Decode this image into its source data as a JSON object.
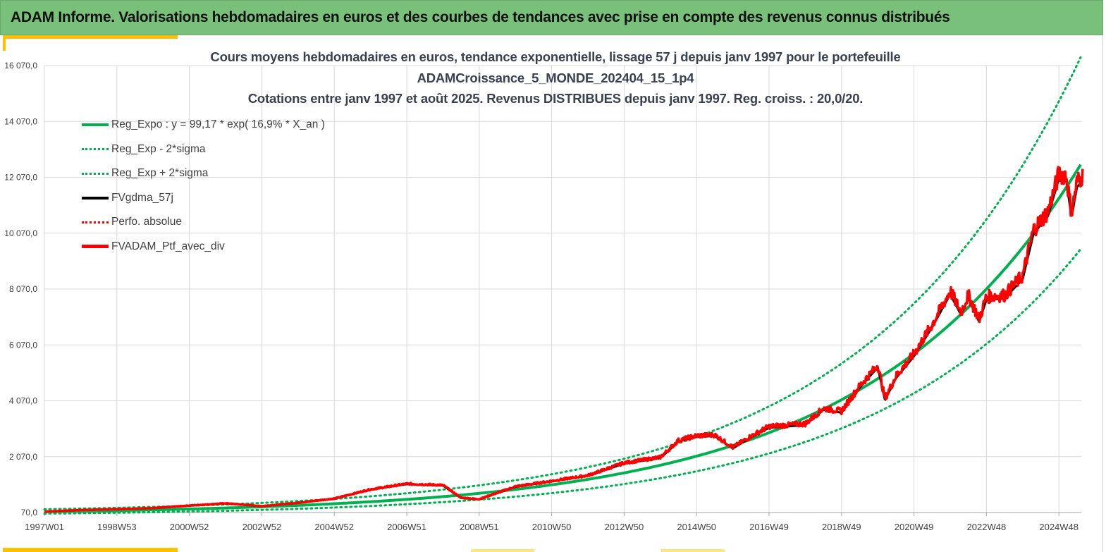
{
  "header": {
    "title": "ADAM Informe. Valorisations hebdomadaires en euros et des courbes de tendances avec prise en compte des revenus connus distribués"
  },
  "chart_data": {
    "type": "line",
    "title_lines": [
      "Cours moyens hebdomadaires  en euros, tendance exponentielle, lissage 57 j depuis janv 1997 pour le portefeuille",
      "ADAMCroissance_5_MONDE_202404_15_1p4",
      "Cotations  entre janv 1997 et août 2025. Revenus DISTRIBUES depuis janv 1997. Reg. croiss. : 20,0/20."
    ],
    "xlabel": "",
    "ylabel": "",
    "x_ticks": [
      "1997W01",
      "1998W53",
      "2000W52",
      "2002W52",
      "2004W52",
      "2006W51",
      "2008W51",
      "2010W50",
      "2012W50",
      "2014W50",
      "2016W49",
      "2018W49",
      "2020W49",
      "2022W48",
      "2024W48"
    ],
    "x_range": [
      "1997W01",
      "2025W35"
    ],
    "y_ticks": [
      "70,0",
      "2 070,0",
      "4 070,0",
      "6 070,0",
      "8 070,0",
      "10 070,0",
      "12 070,0",
      "14 070,0",
      "16 070,0"
    ],
    "ylim": [
      70,
      16070
    ],
    "grid": true,
    "legend_position": "top-left",
    "regression": {
      "a": 99.17,
      "rate": 0.169
    },
    "series": [
      {
        "name": "Reg_Expo : y = 99,17 * exp( 16,9% *  X_an )",
        "color": "#00b050",
        "style": "solid"
      },
      {
        "name": "Reg_Exp - 2*sigma",
        "color": "#00b050",
        "style": "dotted"
      },
      {
        "name": "Reg_Exp + 2*sigma",
        "color": "#00b050",
        "style": "dotted"
      },
      {
        "name": "FVgdma_57j",
        "color": "#000000",
        "style": "solid"
      },
      {
        "name": "Perfo. absolue",
        "color": "#ff0000",
        "style": "dotted"
      },
      {
        "name": "FVADAM_Ptf_avec_div",
        "color": "#ff0000",
        "style": "solid",
        "points": [
          [
            1997.0,
            100
          ],
          [
            1998.0,
            160
          ],
          [
            1999.0,
            190
          ],
          [
            2000.0,
            230
          ],
          [
            2001.0,
            320
          ],
          [
            2002.0,
            400
          ],
          [
            2003.0,
            300
          ],
          [
            2004.0,
            420
          ],
          [
            2005.0,
            570
          ],
          [
            2006.0,
            900
          ],
          [
            2007.0,
            1100
          ],
          [
            2008.0,
            1050
          ],
          [
            2008.5,
            600
          ],
          [
            2009.0,
            550
          ],
          [
            2010.0,
            1000
          ],
          [
            2011.0,
            1200
          ],
          [
            2012.0,
            1400
          ],
          [
            2013.0,
            1850
          ],
          [
            2014.0,
            2050
          ],
          [
            2014.5,
            2650
          ],
          [
            2015.0,
            2820
          ],
          [
            2015.5,
            2850
          ],
          [
            2016.0,
            2400
          ],
          [
            2016.5,
            2800
          ],
          [
            2017.0,
            3150
          ],
          [
            2018.0,
            3250
          ],
          [
            2018.5,
            3800
          ],
          [
            2019.0,
            3700
          ],
          [
            2019.5,
            4600
          ],
          [
            2020.0,
            5350
          ],
          [
            2020.2,
            4150
          ],
          [
            2020.5,
            4950
          ],
          [
            2021.0,
            5750
          ],
          [
            2021.5,
            6800
          ],
          [
            2022.0,
            8000
          ],
          [
            2022.3,
            7250
          ],
          [
            2022.5,
            7850
          ],
          [
            2022.8,
            7000
          ],
          [
            2023.0,
            7800
          ],
          [
            2023.5,
            7850
          ],
          [
            2024.0,
            8550
          ],
          [
            2024.3,
            10200
          ],
          [
            2024.7,
            10850
          ],
          [
            2025.0,
            12200
          ],
          [
            2025.2,
            12150
          ],
          [
            2025.35,
            10800
          ],
          [
            2025.5,
            11900
          ],
          [
            2025.67,
            12150
          ]
        ]
      }
    ]
  }
}
